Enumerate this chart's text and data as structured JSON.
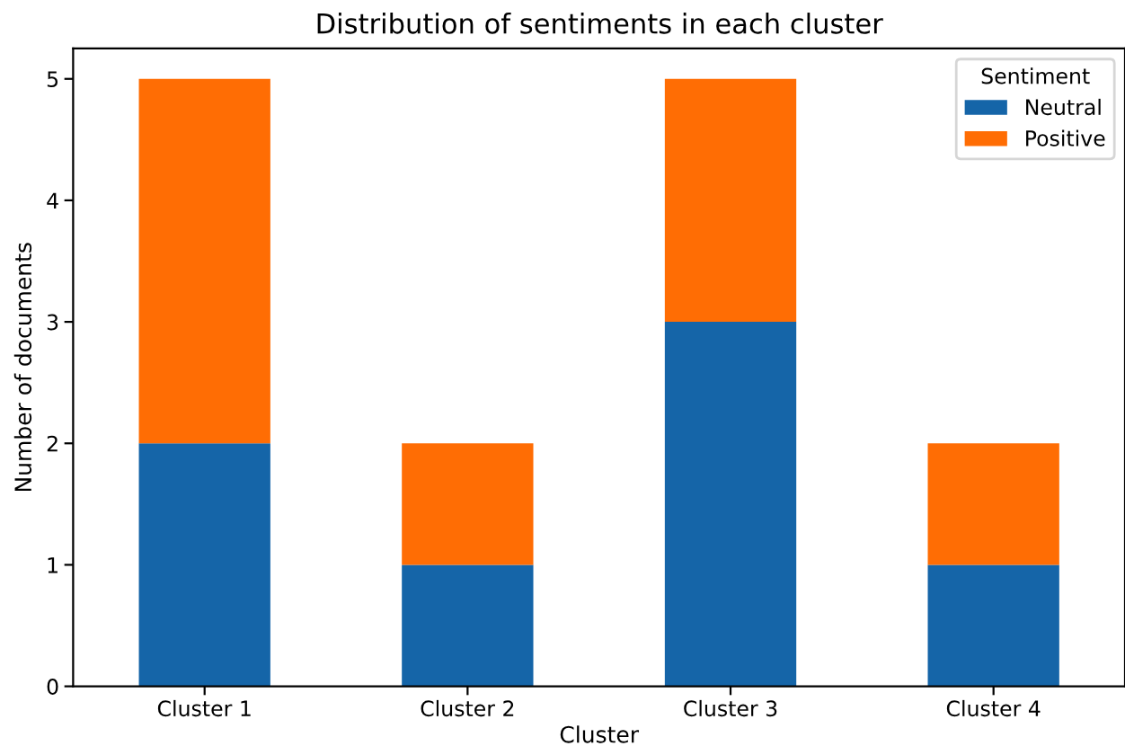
{
  "chart_data": {
    "type": "bar",
    "stacked": true,
    "title": "Distribution of sentiments in each cluster",
    "xlabel": "Cluster",
    "ylabel": "Number of documents",
    "legend_title": "Sentiment",
    "legend": "top right",
    "categories": [
      "Cluster 1",
      "Cluster 2",
      "Cluster 3",
      "Cluster 4"
    ],
    "series": [
      {
        "name": "Neutral",
        "color": "#1565a8",
        "values": [
          2,
          1,
          3,
          1
        ]
      },
      {
        "name": "Positive",
        "color": "#ff6d04",
        "values": [
          3,
          1,
          2,
          1
        ]
      }
    ],
    "ylim": [
      0,
      5.25
    ],
    "yticks": [
      0,
      1,
      2,
      3,
      4,
      5
    ]
  }
}
